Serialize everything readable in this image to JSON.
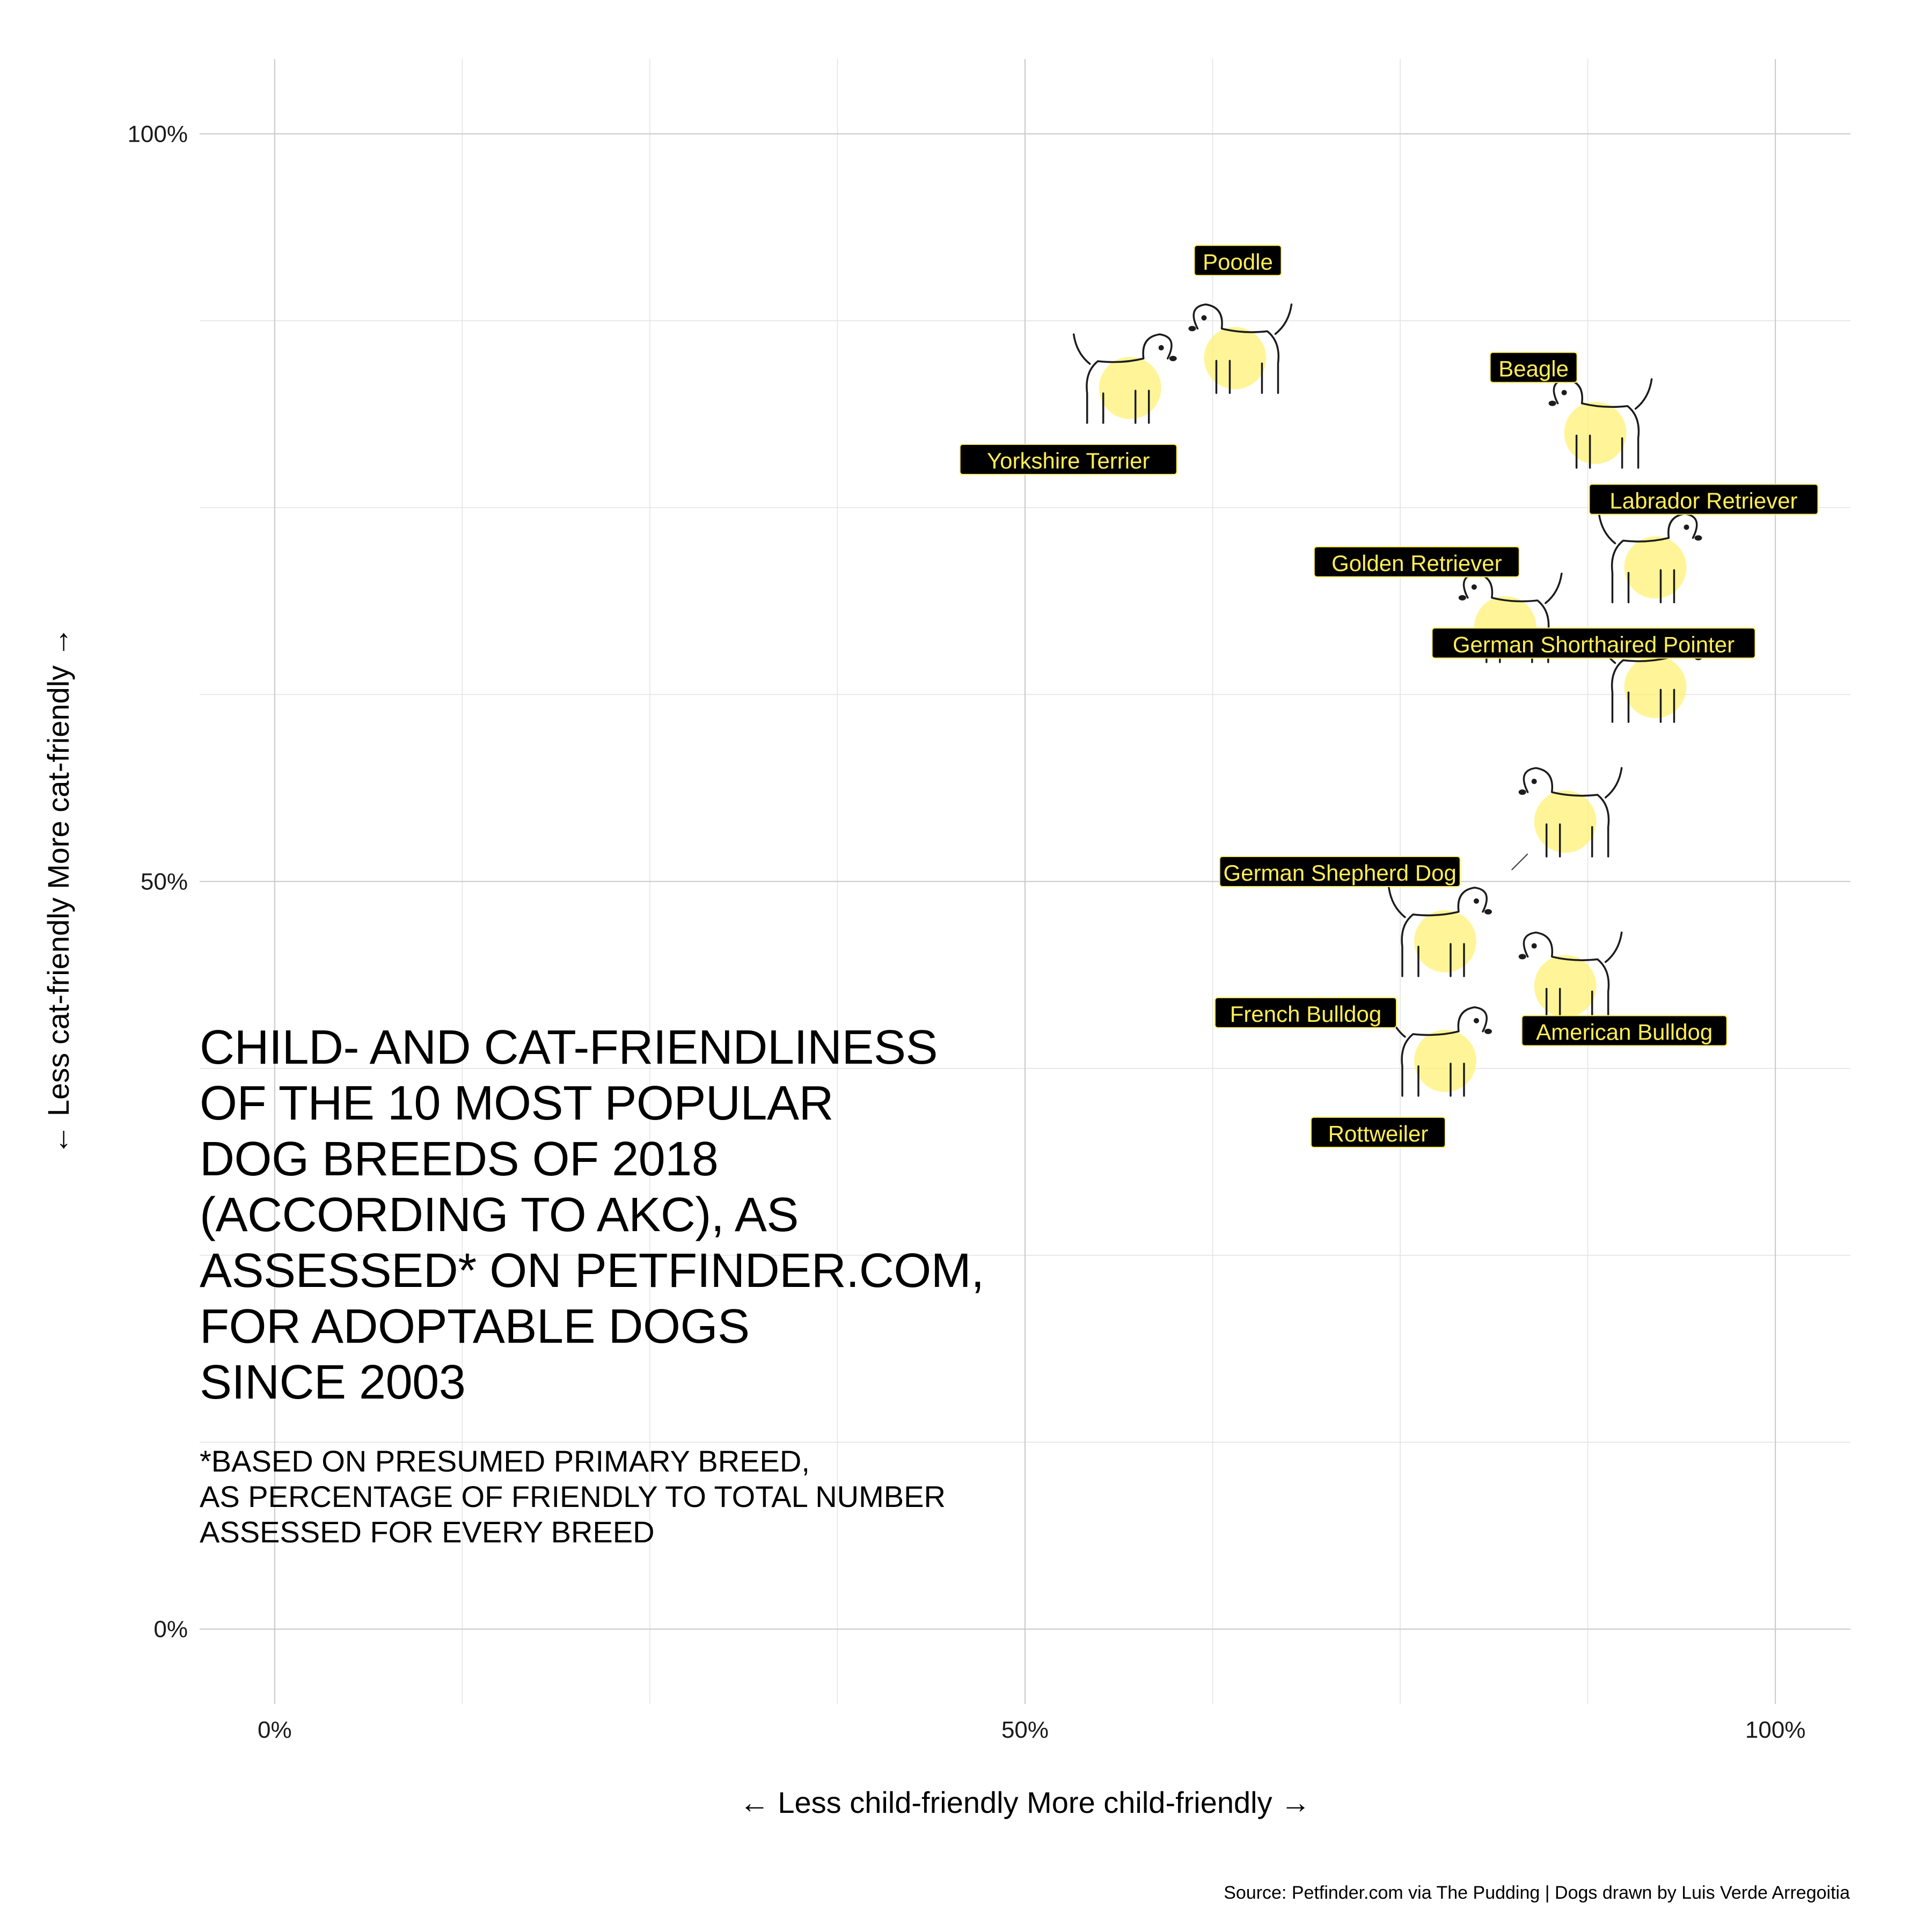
{
  "chart_data": {
    "type": "scatter",
    "title_lines": [
      "CHILD- AND CAT-FRIENDLINESS",
      "OF THE 10 MOST POPULAR",
      "DOG BREEDS OF 2018",
      "(ACCORDING TO AKC), AS",
      "ASSESSED* ON PETFINDER.COM,",
      "FOR ADOPTABLE DOGS",
      "SINCE 2003"
    ],
    "subtitle_lines": [
      "*BASED ON PRESUMED PRIMARY BREED,",
      "AS PERCENTAGE OF FRIENDLY TO TOTAL NUMBER",
      "ASSESSED FOR EVERY BREED"
    ],
    "xlabel": "← Less child-friendly  More child-friendly →",
    "ylabel": "← Less cat-friendly  More cat-friendly →",
    "xlim": [
      -0.05,
      1.05
    ],
    "ylim": [
      -0.05,
      1.05
    ],
    "x_ticks": [
      0,
      0.5,
      1
    ],
    "x_tick_labels": [
      "0%",
      "50%",
      "100%"
    ],
    "y_ticks": [
      0,
      0.5,
      1
    ],
    "y_tick_labels": [
      "0%",
      "50%",
      "100%"
    ],
    "minor_ticks": [
      0.125,
      0.25,
      0.375,
      0.625,
      0.75,
      0.875
    ],
    "grid": true,
    "marker": "dog drawing with yellow circle",
    "marker_color": "#fff176",
    "label_fill": "#000000",
    "label_text_color": "#ffee55",
    "caption": "Source: Petfinder.com via The Pudding | Dogs drawn by Luis Verde Arregoitia",
    "points": [
      {
        "breed": "Poodle",
        "x": 0.64,
        "y": 0.85
      },
      {
        "breed": "Yorkshire Terrier",
        "x": 0.57,
        "y": 0.83
      },
      {
        "breed": "Beagle",
        "x": 0.88,
        "y": 0.8
      },
      {
        "breed": "Labrador Retriever",
        "x": 0.92,
        "y": 0.71
      },
      {
        "breed": "Golden Retriever",
        "x": 0.82,
        "y": 0.67
      },
      {
        "breed": "German Shorthaired Pointer",
        "x": 0.92,
        "y": 0.63
      },
      {
        "breed": "German Shepherd Dog",
        "x": 0.86,
        "y": 0.54
      },
      {
        "breed": "French Bulldog",
        "x": 0.78,
        "y": 0.46
      },
      {
        "breed": "American Bulldog",
        "x": 0.86,
        "y": 0.43
      },
      {
        "breed": "Rottweiler",
        "x": 0.78,
        "y": 0.38
      }
    ]
  }
}
